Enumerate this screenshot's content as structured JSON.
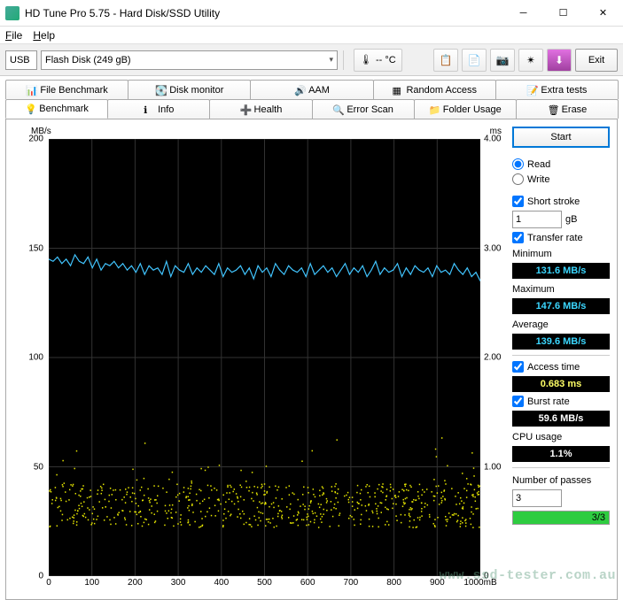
{
  "window": {
    "title": "HD Tune Pro 5.75 - Hard Disk/SSD Utility"
  },
  "menu": {
    "file": "File",
    "help": "Help"
  },
  "toolbar": {
    "device_type": "USB",
    "device_name": "Flash Disk (249 gB)",
    "temperature": "-- °C",
    "exit_label": "Exit"
  },
  "tabs_top": [
    {
      "icon": "file-benchmark-icon",
      "label": "File Benchmark"
    },
    {
      "icon": "disk-monitor-icon",
      "label": "Disk monitor"
    },
    {
      "icon": "aam-icon",
      "label": "AAM"
    },
    {
      "icon": "random-access-icon",
      "label": "Random Access"
    },
    {
      "icon": "extra-tests-icon",
      "label": "Extra tests"
    }
  ],
  "tabs_bottom": [
    {
      "icon": "benchmark-icon",
      "label": "Benchmark",
      "active": true
    },
    {
      "icon": "info-icon",
      "label": "Info"
    },
    {
      "icon": "health-icon",
      "label": "Health"
    },
    {
      "icon": "error-scan-icon",
      "label": "Error Scan"
    },
    {
      "icon": "folder-usage-icon",
      "label": "Folder Usage"
    },
    {
      "icon": "erase-icon",
      "label": "Erase"
    }
  ],
  "chart": {
    "y_left_label": "MB/s",
    "y_right_label": "ms",
    "x_unit": "mB",
    "y_left_max": 200,
    "y_left_ticks": [
      200,
      150,
      100,
      50,
      0
    ],
    "y_right_max": 4.0,
    "y_right_ticks": [
      "4.00",
      "3.00",
      "2.00",
      "1.00",
      "0"
    ],
    "x_max": 1000,
    "x_ticks": [
      0,
      100,
      200,
      300,
      400,
      500,
      600,
      700,
      800,
      900,
      1000
    ],
    "bg": "#000000",
    "grid": "#333333",
    "transfer_color": "#41c5ff",
    "access_color": "#e6e600",
    "transfer_mean": 140,
    "transfer_jitter": 7,
    "transfer_series": [
      145,
      144,
      146,
      143,
      145,
      142,
      147,
      144,
      143,
      146,
      141,
      145,
      140,
      143,
      142,
      144,
      141,
      143,
      140,
      142,
      139,
      143,
      138,
      142,
      140,
      141,
      138,
      144,
      137,
      142,
      140,
      139,
      143,
      138,
      141,
      139,
      142,
      140,
      138,
      143,
      137,
      141,
      139,
      140,
      142,
      138,
      141,
      136,
      142,
      139,
      141,
      137,
      143,
      140,
      138,
      142,
      140,
      139,
      141,
      137,
      143,
      138,
      140,
      142,
      139,
      141,
      137,
      140,
      143,
      138,
      141,
      139,
      142,
      137,
      140,
      144,
      138,
      141,
      139,
      140,
      143,
      137,
      141,
      138,
      142,
      140,
      139,
      141,
      137,
      142,
      139,
      140,
      138,
      143,
      140,
      138,
      141,
      137,
      139,
      135
    ],
    "access_band_lo": 0.45,
    "access_band_hi": 0.85
  },
  "side": {
    "start_label": "Start",
    "read_label": "Read",
    "write_label": "Write",
    "short_stroke_label": "Short stroke",
    "short_stroke_value": "1",
    "short_stroke_unit": "gB",
    "transfer_rate_label": "Transfer rate",
    "minimum_label": "Minimum",
    "minimum_value": "131.6 MB/s",
    "maximum_label": "Maximum",
    "maximum_value": "147.6 MB/s",
    "average_label": "Average",
    "average_value": "139.6 MB/s",
    "access_time_label": "Access time",
    "access_time_value": "0.683 ms",
    "burst_rate_label": "Burst rate",
    "burst_rate_value": "59.6 MB/s",
    "cpu_usage_label": "CPU usage",
    "cpu_usage_value": "1.1%",
    "passes_label": "Number of passes",
    "passes_value": "3",
    "progress_text": "3/3",
    "progress_pct": 100
  },
  "watermark": "www.ssd-tester.com.au"
}
